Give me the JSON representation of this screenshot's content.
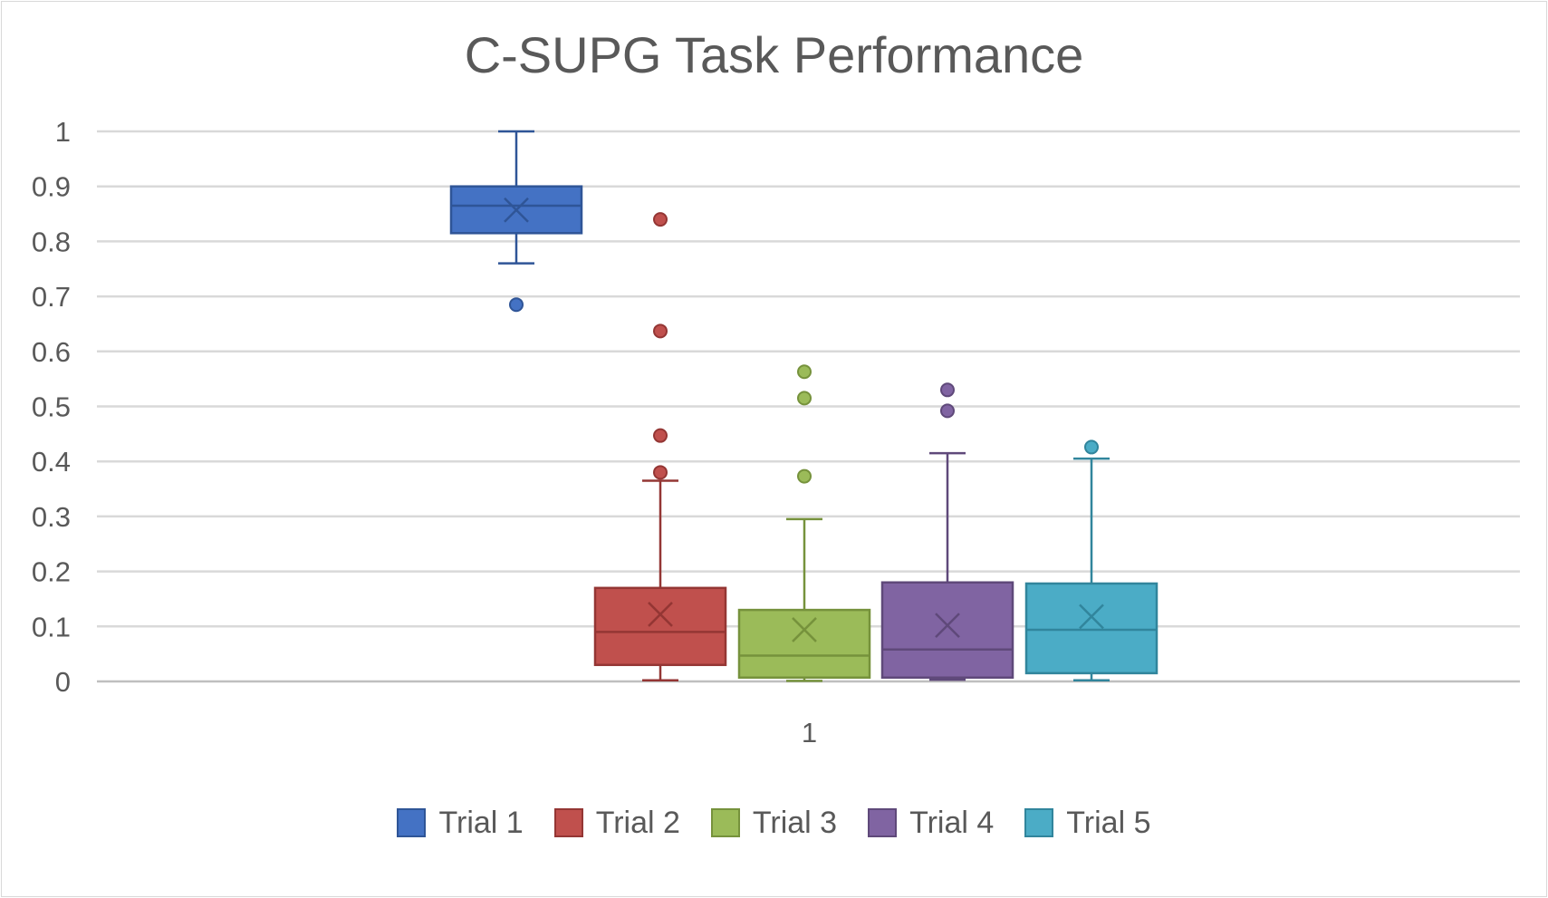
{
  "chart_data": {
    "type": "boxplot",
    "title": "C-SUPG Task Performance",
    "xlabel": "",
    "ylabel": "",
    "categories": [
      "1"
    ],
    "ylim": [
      0,
      1
    ],
    "yticks": [
      "0",
      "0.1",
      "0.2",
      "0.3",
      "0.4",
      "0.5",
      "0.6",
      "0.7",
      "0.8",
      "0.9",
      "1"
    ],
    "grid": true,
    "legend": "bottom",
    "series": [
      {
        "name": "Trial 1",
        "color": "#4472c4",
        "edge": "#2f5597",
        "min": 0.76,
        "q1": 0.815,
        "median": 0.865,
        "q3": 0.9,
        "max": 1.0,
        "mean": 0.857,
        "outliers": [
          0.685
        ]
      },
      {
        "name": "Trial 2",
        "color": "#c0504d",
        "edge": "#943634",
        "min": 0.002,
        "q1": 0.03,
        "median": 0.09,
        "q3": 0.17,
        "max": 0.365,
        "mean": 0.122,
        "outliers": [
          0.84,
          0.637,
          0.447,
          0.38
        ]
      },
      {
        "name": "Trial 3",
        "color": "#9bbb59",
        "edge": "#76923c",
        "min": 0.001,
        "q1": 0.007,
        "median": 0.047,
        "q3": 0.13,
        "max": 0.295,
        "mean": 0.094,
        "outliers": [
          0.563,
          0.515,
          0.373
        ]
      },
      {
        "name": "Trial 4",
        "color": "#8064a2",
        "edge": "#5f497a",
        "min": 0.003,
        "q1": 0.007,
        "median": 0.058,
        "q3": 0.18,
        "max": 0.415,
        "mean": 0.102,
        "outliers": [
          0.53,
          0.492
        ]
      },
      {
        "name": "Trial 5",
        "color": "#4bacc6",
        "edge": "#31859c",
        "min": 0.002,
        "q1": 0.015,
        "median": 0.094,
        "q3": 0.178,
        "max": 0.405,
        "mean": 0.118,
        "outliers": [
          0.426
        ]
      }
    ]
  }
}
